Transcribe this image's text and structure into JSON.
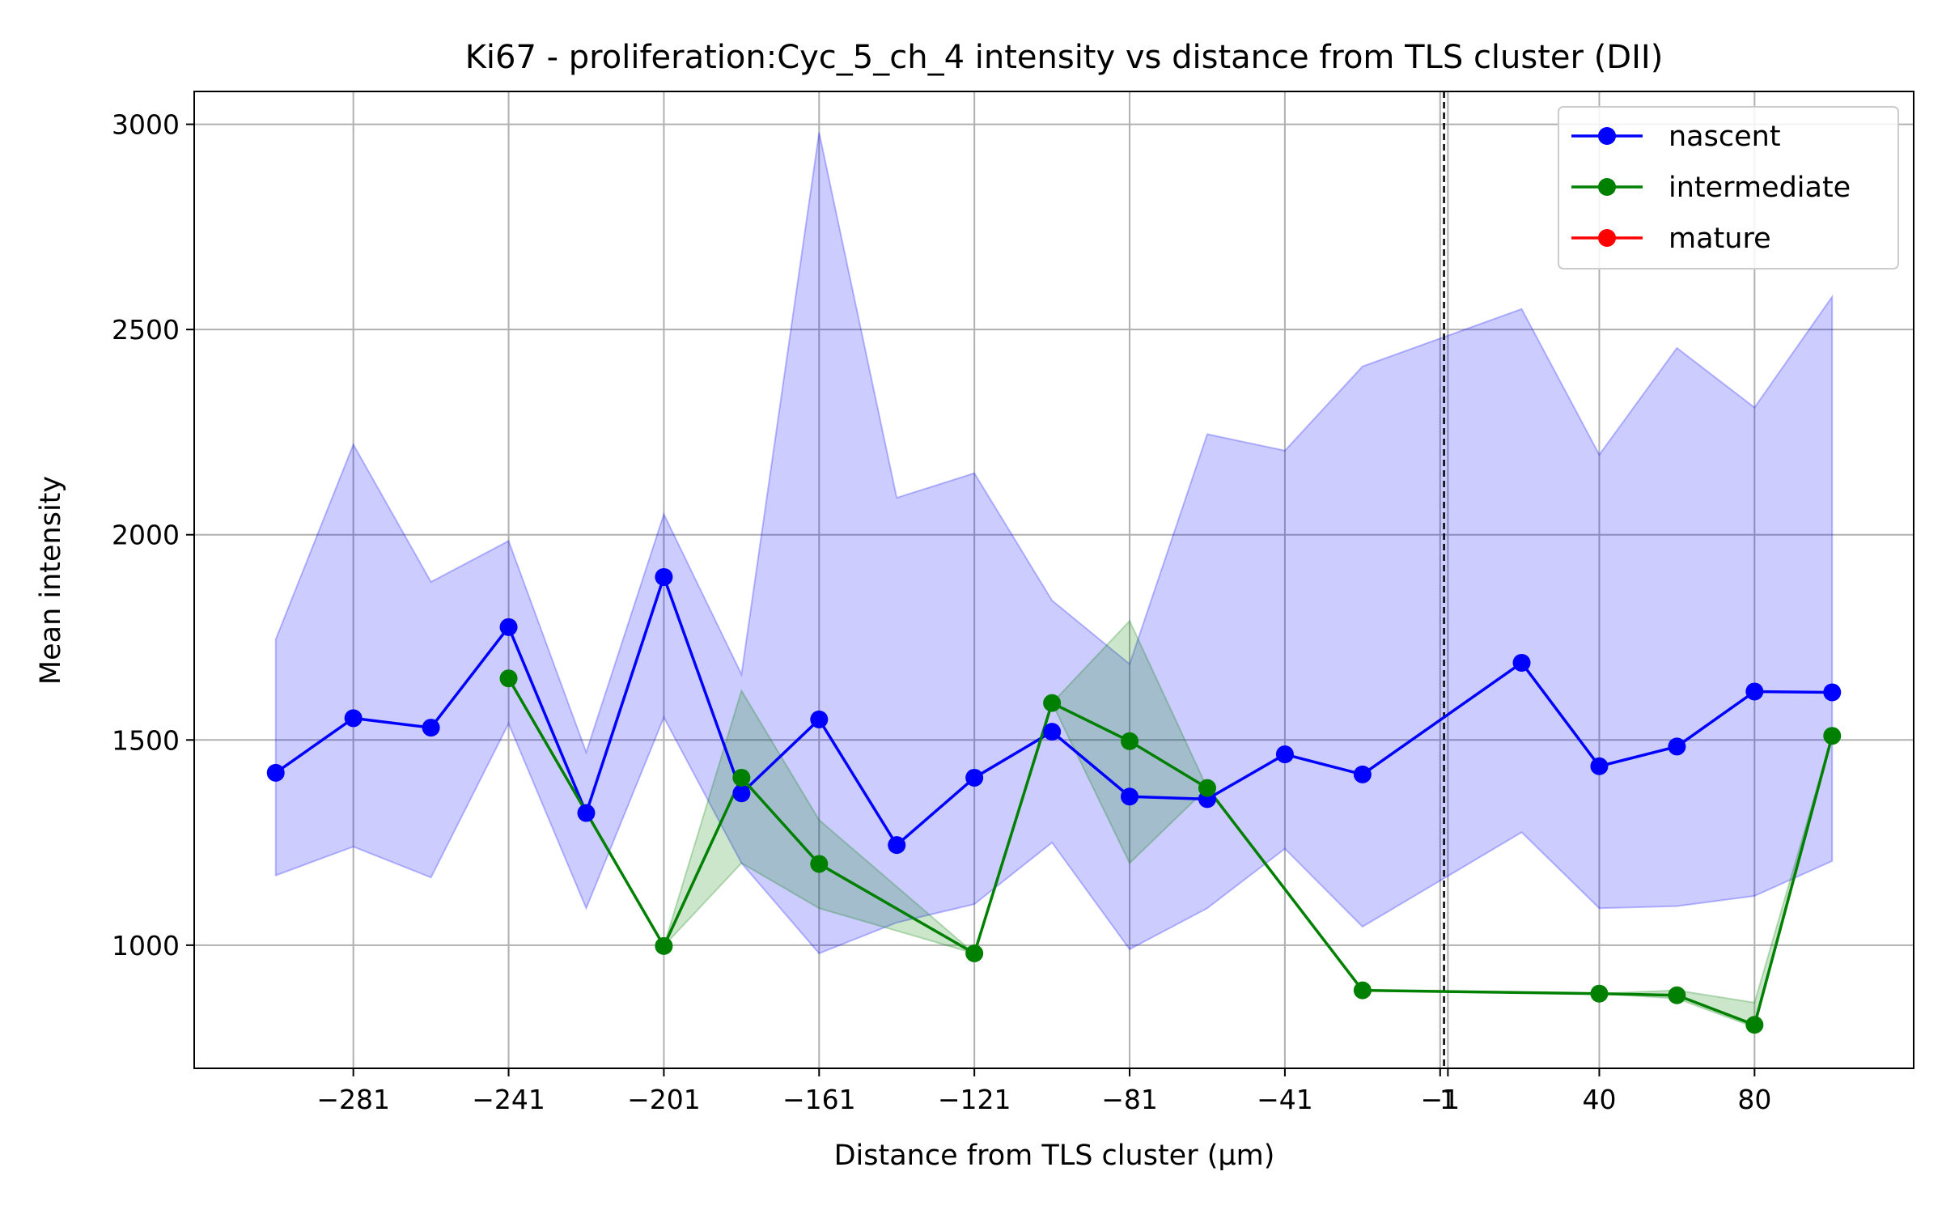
{
  "chart_data": {
    "type": "line",
    "title": "Ki67 - proliferation:Cyc_5_ch_4 intensity vs distance from TLS cluster (DII)",
    "xlabel": "Distance from TLS cluster (μm)",
    "ylabel": "Mean intensity",
    "xlim": [
      -322,
      121
    ],
    "ylim": [
      700,
      3080
    ],
    "x_ticks": [
      -281,
      -241,
      -201,
      -161,
      -121,
      -81,
      -41,
      -1,
      1,
      40,
      80
    ],
    "x_tick_labels": [
      "−281",
      "−241",
      "−201",
      "−161",
      "−121",
      "−81",
      "−41",
      "−1",
      "1",
      "40",
      "80"
    ],
    "y_ticks": [
      1000,
      1500,
      2000,
      2500,
      3000
    ],
    "y_tick_labels": [
      "1000",
      "1500",
      "2000",
      "2500",
      "3000"
    ],
    "grid": true,
    "legend_position": "top-right",
    "reference_line_x": 0,
    "series": [
      {
        "name": "nascent",
        "color": "#0000ff",
        "x": [
          -301,
          -281,
          -261,
          -241,
          -221,
          -201,
          -181,
          -161,
          -141,
          -121,
          -101,
          -81,
          -61,
          -41,
          -21,
          20,
          40,
          60,
          80,
          100
        ],
        "y": [
          1420,
          1553,
          1530,
          1775,
          1322,
          1897,
          1370,
          1550,
          1244,
          1408,
          1520,
          1362,
          1356,
          1465,
          1416,
          1688,
          1436,
          1484,
          1618,
          1616
        ],
        "band_upper": [
          1745,
          2220,
          1885,
          1985,
          1470,
          2050,
          1660,
          2980,
          2090,
          2150,
          1840,
          1685,
          2245,
          2205,
          2410,
          2550,
          2195,
          2455,
          2310,
          2580
        ],
        "band_lower": [
          1170,
          1240,
          1165,
          1540,
          1090,
          1555,
          1200,
          980,
          1055,
          1100,
          1250,
          990,
          1090,
          1235,
          1045,
          1275,
          1090,
          1095,
          1120,
          1205
        ]
      },
      {
        "name": "intermediate",
        "color": "#008000",
        "x": [
          -241,
          -201,
          -181,
          -161,
          -121,
          -101,
          -81,
          -61,
          -21,
          40,
          60,
          80,
          100
        ],
        "y": [
          1650,
          998,
          1408,
          1198,
          980,
          1590,
          1497,
          1383,
          890,
          882,
          878,
          806,
          1510
        ],
        "band_upper": [
          1650,
          998,
          1620,
          1305,
          980,
          1590,
          1790,
          1383,
          890,
          882,
          890,
          860,
          1510
        ],
        "band_lower": [
          1650,
          998,
          1200,
          1090,
          980,
          1590,
          1200,
          1383,
          890,
          882,
          870,
          800,
          1510
        ]
      },
      {
        "name": "mature",
        "color": "#ff0000",
        "x": [],
        "y": []
      }
    ]
  }
}
